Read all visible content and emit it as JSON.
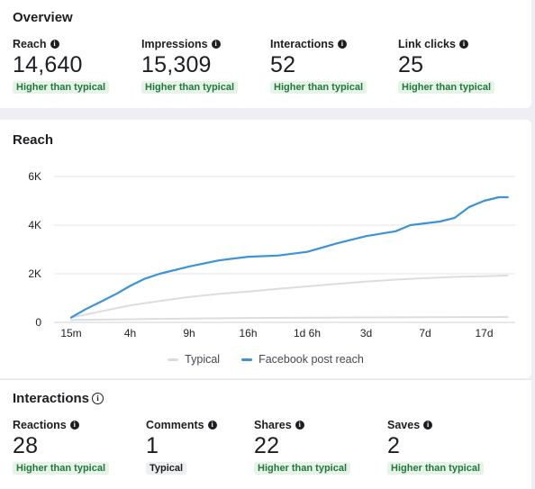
{
  "overview": {
    "title": "Overview",
    "metrics": [
      {
        "label": "Reach",
        "value": "14,640",
        "badge": "Higher than typical"
      },
      {
        "label": "Impressions",
        "value": "15,309",
        "badge": "Higher than typical"
      },
      {
        "label": "Interactions",
        "value": "52",
        "badge": "Higher than typical"
      },
      {
        "label": "Link clicks",
        "value": "25",
        "badge": "Higher than typical"
      }
    ]
  },
  "reach": {
    "title": "Reach",
    "legend": {
      "typical": "Typical",
      "post": "Facebook post reach"
    }
  },
  "interactions": {
    "title": "Interactions",
    "metrics": [
      {
        "label": "Reactions",
        "value": "28",
        "badge": "Higher than typical"
      },
      {
        "label": "Comments",
        "value": "1",
        "badge": "Typical"
      },
      {
        "label": "Shares",
        "value": "22",
        "badge": "Higher than typical"
      },
      {
        "label": "Saves",
        "value": "2",
        "badge": "Higher than typical"
      }
    ]
  },
  "icons": {
    "info": "info-icon",
    "info_outline": "info-outline-icon"
  },
  "colors": {
    "post_reach": "#3b93d8",
    "typical": "#dcdde0",
    "badge_bg": "#e7f3e8",
    "badge_text": "#1f7a3a"
  },
  "chart_data": {
    "type": "line",
    "categories": [
      "15m",
      "4h",
      "9h",
      "16h",
      "1d 6h",
      "3d",
      "7d",
      "17d"
    ],
    "y_ticks": [
      "0",
      "2K",
      "4K",
      "6K"
    ],
    "ylim": [
      0,
      6000
    ],
    "series": [
      {
        "name": "Facebook post reach",
        "color": "#3b93d8",
        "points": [
          [
            0,
            200
          ],
          [
            0.25,
            550
          ],
          [
            0.5,
            850
          ],
          [
            0.75,
            1150
          ],
          [
            1,
            1500
          ],
          [
            1.25,
            1800
          ],
          [
            1.5,
            2000
          ],
          [
            2,
            2300
          ],
          [
            2.5,
            2550
          ],
          [
            3,
            2700
          ],
          [
            3.5,
            2750
          ],
          [
            4,
            2900
          ],
          [
            4.5,
            3250
          ],
          [
            5,
            3550
          ],
          [
            5.5,
            3750
          ],
          [
            5.75,
            4000
          ],
          [
            6.25,
            4150
          ],
          [
            6.5,
            4300
          ],
          [
            6.75,
            4750
          ],
          [
            7,
            5000
          ],
          [
            7.25,
            5150
          ],
          [
            7.4,
            5150
          ]
        ]
      },
      {
        "name": "Typical",
        "color": "#dcdde0",
        "points": [
          [
            0,
            200
          ],
          [
            0.5,
            450
          ],
          [
            1,
            700
          ],
          [
            1.5,
            880
          ],
          [
            2,
            1050
          ],
          [
            2.5,
            1170
          ],
          [
            3,
            1270
          ],
          [
            3.5,
            1380
          ],
          [
            4,
            1480
          ],
          [
            4.5,
            1580
          ],
          [
            5,
            1680
          ],
          [
            5.5,
            1760
          ],
          [
            6,
            1820
          ],
          [
            6.5,
            1870
          ],
          [
            7,
            1900
          ],
          [
            7.4,
            1930
          ]
        ]
      },
      {
        "name": "",
        "color": "#dcdde0",
        "points": [
          [
            0,
            100
          ],
          [
            1,
            130
          ],
          [
            2,
            160
          ],
          [
            3,
            180
          ],
          [
            4,
            195
          ],
          [
            5,
            205
          ],
          [
            6,
            215
          ],
          [
            7,
            220
          ],
          [
            7.4,
            222
          ]
        ]
      }
    ],
    "grid": true,
    "legend_position": "bottom-center"
  }
}
